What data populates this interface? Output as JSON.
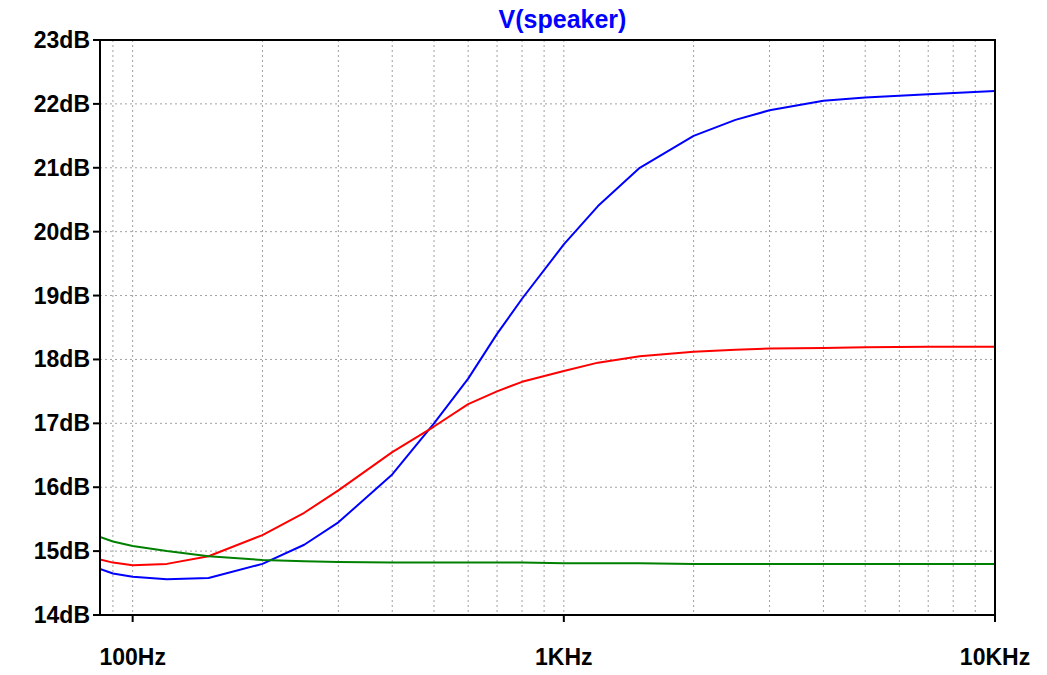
{
  "chart_data": {
    "type": "line",
    "title": "V(speaker)",
    "x": [
      84,
      90,
      100,
      120,
      150,
      200,
      250,
      300,
      400,
      500,
      600,
      700,
      800,
      1000,
      1200,
      1500,
      2000,
      2500,
      3000,
      4000,
      5000,
      7000,
      10000
    ],
    "series": [
      {
        "color": "#0000ff",
        "values": [
          14.72,
          14.65,
          14.6,
          14.56,
          14.58,
          14.8,
          15.1,
          15.45,
          16.2,
          17.0,
          17.7,
          18.4,
          18.95,
          19.8,
          20.4,
          21.0,
          21.5,
          21.75,
          21.9,
          22.05,
          22.1,
          22.15,
          22.2
        ]
      },
      {
        "color": "#ff0000",
        "values": [
          14.87,
          14.82,
          14.78,
          14.8,
          14.92,
          15.25,
          15.6,
          15.95,
          16.55,
          16.95,
          17.3,
          17.5,
          17.65,
          17.82,
          17.95,
          18.05,
          18.12,
          18.15,
          18.17,
          18.18,
          18.19,
          18.2,
          18.2
        ]
      },
      {
        "color": "#008000",
        "values": [
          15.22,
          15.15,
          15.08,
          15.0,
          14.92,
          14.86,
          14.84,
          14.83,
          14.82,
          14.82,
          14.82,
          14.82,
          14.82,
          14.81,
          14.81,
          14.81,
          14.8,
          14.8,
          14.8,
          14.8,
          14.8,
          14.8,
          14.8
        ]
      }
    ],
    "xlim": [
      84,
      10000
    ],
    "ylim": [
      14,
      23
    ],
    "xticks": [
      {
        "value": 100,
        "label": "100Hz"
      },
      {
        "value": 1000,
        "label": "1KHz"
      },
      {
        "value": 10000,
        "label": "10KHz"
      }
    ],
    "yticks": [
      {
        "value": 14,
        "label": "14dB"
      },
      {
        "value": 15,
        "label": "15dB"
      },
      {
        "value": 16,
        "label": "16dB"
      },
      {
        "value": 17,
        "label": "17dB"
      },
      {
        "value": 18,
        "label": "18dB"
      },
      {
        "value": 19,
        "label": "19dB"
      },
      {
        "value": 20,
        "label": "20dB"
      },
      {
        "value": 21,
        "label": "21dB"
      },
      {
        "value": 22,
        "label": "22dB"
      },
      {
        "value": 23,
        "label": "23dB"
      }
    ],
    "log": "x",
    "grid": true
  }
}
